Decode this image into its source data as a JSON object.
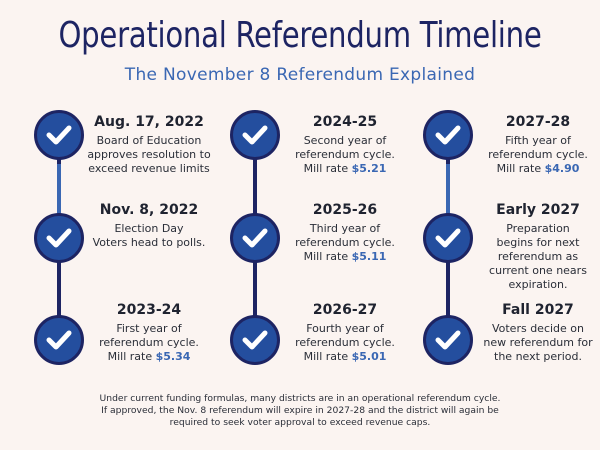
{
  "title": "Operational Referendum Timeline",
  "subtitle": "The November 8 Referendum Explained",
  "colors": {
    "background": "#fbf4f1",
    "navy": "#1d2463",
    "accent_blue": "#3a67b3",
    "node_fill": "#244e9e"
  },
  "columns": [
    {
      "entries": [
        {
          "heading": "Aug. 17, 2022",
          "text": "Board of Education\napproves resolution to\nexceed revenue limits",
          "rate_prefix": "",
          "rate": ""
        },
        {
          "heading": "Nov. 8, 2022",
          "text": "Election Day\nVoters head to polls.",
          "rate_prefix": "",
          "rate": ""
        },
        {
          "heading": "2023-24",
          "text": "First year of\nreferendum cycle.",
          "rate_prefix": "Mill rate ",
          "rate": "$5.34"
        }
      ]
    },
    {
      "entries": [
        {
          "heading": "2024-25",
          "text": "Second year of\nreferendum cycle.",
          "rate_prefix": "Mill rate ",
          "rate": "$5.21"
        },
        {
          "heading": "2025-26",
          "text": "Third year of\nreferendum cycle.",
          "rate_prefix": "Mill rate ",
          "rate": "$5.11"
        },
        {
          "heading": "2026-27",
          "text": "Fourth year of\nreferendum cycle.",
          "rate_prefix": "Mill rate ",
          "rate": "$5.01"
        }
      ]
    },
    {
      "entries": [
        {
          "heading": "2027-28",
          "text": "Fifth year of\nreferendum cycle.",
          "rate_prefix": "Mill rate ",
          "rate": "$4.90"
        },
        {
          "heading": "Early 2027",
          "text": "Preparation\nbegins for next\nreferendum as\ncurrent one nears\nexpiration.",
          "rate_prefix": "",
          "rate": ""
        },
        {
          "heading": "Fall 2027",
          "text": "Voters decide on\nnew referendum for\nthe next period.",
          "rate_prefix": "",
          "rate": ""
        }
      ]
    }
  ],
  "footer": {
    "line1": "Under current funding formulas, many districts are in an operational referendum cycle.",
    "line2": "If approved, the Nov. 8 referendum will expire in 2027-28 and the district will again be",
    "line3": "required to seek voter approval to exceed revenue caps."
  }
}
